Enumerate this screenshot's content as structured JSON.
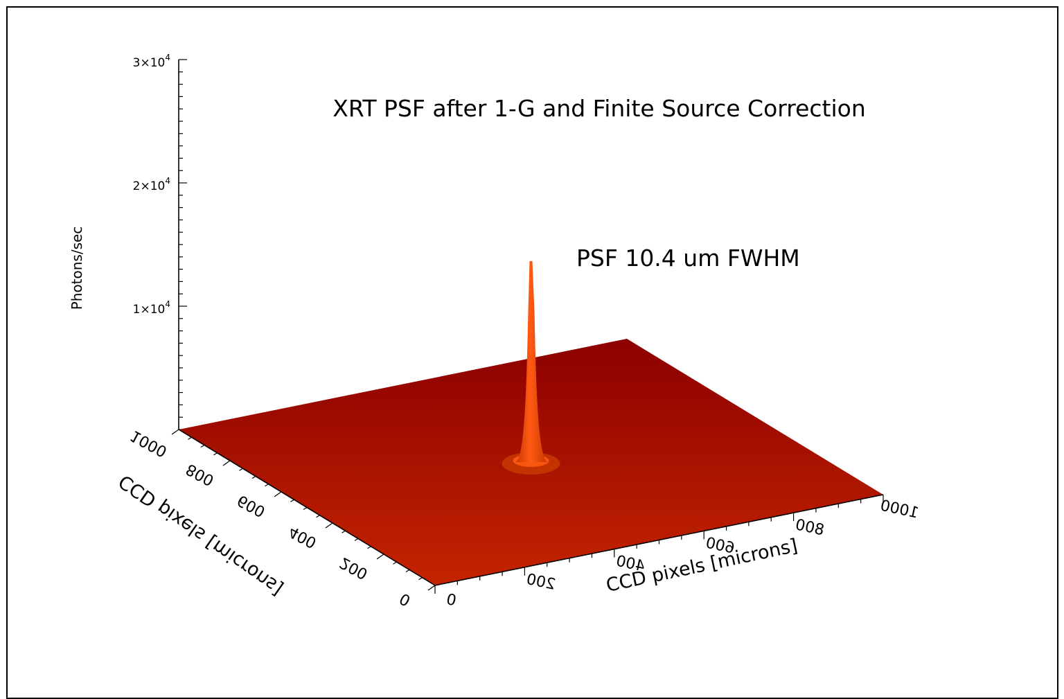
{
  "chart_data": {
    "type": "surface3d",
    "title": "XRT PSF after 1-G and Finite Source Correction",
    "annotation": "PSF 10.4 um FWHM",
    "zlabel": "Photons/sec",
    "xlabel": "CCD pixels [microns]",
    "ylabel": "CCD pixels [microns]",
    "xlim": [
      0,
      1000
    ],
    "ylim": [
      0,
      1000
    ],
    "zlim": [
      0,
      30000
    ],
    "x_ticks": [
      "0",
      "200",
      "400",
      "600",
      "800",
      "1000"
    ],
    "y_ticks": [
      "0",
      "200",
      "400",
      "600",
      "800",
      "1000"
    ],
    "z_ticks": [
      {
        "value": 10000,
        "mantissa": "1",
        "exp": "4"
      },
      {
        "value": 20000,
        "mantissa": "2",
        "exp": "4"
      },
      {
        "value": 30000,
        "mantissa": "3",
        "exp": "4"
      }
    ],
    "peak": {
      "x": 500,
      "y": 500,
      "z": 16300
    },
    "baseline_z": 0,
    "colors": {
      "surface_top": "#8c0000",
      "surface_bottom": "#c42400",
      "peak": "#ff5a14",
      "peak_dark": "#c83800"
    }
  }
}
